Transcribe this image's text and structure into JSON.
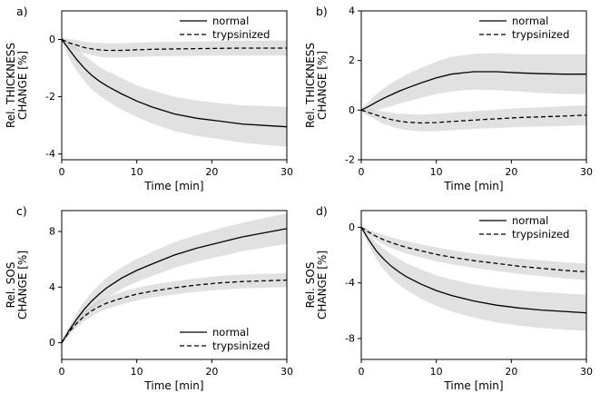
{
  "figure": {
    "background": "#ffffff",
    "line_color": "#000000",
    "band_color": "#c9c9c9"
  },
  "chart_data": [
    {
      "panel": "a)",
      "type": "line",
      "xlabel": "Time [min]",
      "ylabel_lines": [
        "Rel. THICKNESS",
        "CHANGE [%]"
      ],
      "xlim": [
        0,
        30
      ],
      "ylim": [
        -4.2,
        1.0
      ],
      "xticks": [
        0,
        10,
        20,
        30
      ],
      "yticks": [
        -4,
        -2,
        0
      ],
      "legend_position": "top-right",
      "x": [
        0,
        1,
        2,
        3,
        4,
        5,
        6,
        8,
        10,
        12,
        15,
        18,
        21,
        24,
        27,
        30
      ],
      "series": [
        {
          "name": "normal",
          "line_style": "solid",
          "y": [
            0,
            -0.35,
            -0.7,
            -1.0,
            -1.25,
            -1.45,
            -1.62,
            -1.9,
            -2.15,
            -2.35,
            -2.6,
            -2.75,
            -2.85,
            -2.95,
            -3.0,
            -3.05
          ],
          "band": [
            0.05,
            0.3,
            0.4,
            0.45,
            0.5,
            0.5,
            0.52,
            0.55,
            0.55,
            0.58,
            0.6,
            0.62,
            0.63,
            0.65,
            0.68,
            0.7
          ]
        },
        {
          "name": "trypsinized",
          "line_style": "dashed",
          "y": [
            0,
            -0.12,
            -0.2,
            -0.28,
            -0.33,
            -0.36,
            -0.38,
            -0.38,
            -0.36,
            -0.34,
            -0.33,
            -0.32,
            -0.31,
            -0.3,
            -0.3,
            -0.3
          ],
          "band": [
            0.05,
            0.14,
            0.18,
            0.2,
            0.22,
            0.24,
            0.25,
            0.25,
            0.25,
            0.25,
            0.25,
            0.25,
            0.25,
            0.26,
            0.26,
            0.27
          ]
        }
      ]
    },
    {
      "panel": "b)",
      "type": "line",
      "xlabel": "Time [min]",
      "ylabel_lines": [
        "Rel. THICKNESS",
        "CHANGE [%]"
      ],
      "xlim": [
        0,
        30
      ],
      "ylim": [
        -2.0,
        4.0
      ],
      "xticks": [
        0,
        10,
        20,
        30
      ],
      "yticks": [
        -2,
        0,
        2,
        4
      ],
      "legend_position": "top-right",
      "x": [
        0,
        1,
        2,
        3,
        4,
        5,
        6,
        8,
        10,
        12,
        15,
        18,
        21,
        24,
        27,
        30
      ],
      "series": [
        {
          "name": "normal",
          "line_style": "solid",
          "y": [
            0,
            0.15,
            0.32,
            0.48,
            0.62,
            0.76,
            0.88,
            1.1,
            1.3,
            1.45,
            1.55,
            1.55,
            1.5,
            1.47,
            1.45,
            1.45
          ],
          "band": [
            0.05,
            0.2,
            0.32,
            0.4,
            0.46,
            0.5,
            0.55,
            0.6,
            0.65,
            0.7,
            0.72,
            0.75,
            0.75,
            0.78,
            0.8,
            0.8
          ]
        },
        {
          "name": "trypsinized",
          "line_style": "dashed",
          "y": [
            0,
            -0.1,
            -0.2,
            -0.3,
            -0.38,
            -0.44,
            -0.48,
            -0.52,
            -0.5,
            -0.46,
            -0.4,
            -0.35,
            -0.3,
            -0.27,
            -0.24,
            -0.2
          ],
          "band": [
            0.05,
            0.14,
            0.2,
            0.25,
            0.28,
            0.3,
            0.32,
            0.34,
            0.35,
            0.35,
            0.36,
            0.37,
            0.38,
            0.39,
            0.4,
            0.4
          ]
        }
      ]
    },
    {
      "panel": "c)",
      "type": "line",
      "xlabel": "Time [min]",
      "ylabel_lines": [
        "Rel. SOS",
        "CHANGE [%]"
      ],
      "xlim": [
        0,
        30
      ],
      "ylim": [
        -1.2,
        9.5
      ],
      "xticks": [
        0,
        10,
        20,
        30
      ],
      "yticks": [
        0,
        4,
        8
      ],
      "legend_position": "bottom-right",
      "x": [
        0,
        1,
        2,
        3,
        4,
        5,
        6,
        8,
        10,
        12,
        15,
        18,
        21,
        24,
        27,
        30
      ],
      "series": [
        {
          "name": "normal",
          "line_style": "solid",
          "y": [
            0,
            0.9,
            1.7,
            2.4,
            3.0,
            3.5,
            3.95,
            4.65,
            5.2,
            5.65,
            6.3,
            6.8,
            7.2,
            7.6,
            7.9,
            8.2
          ],
          "band": [
            0.1,
            0.3,
            0.45,
            0.55,
            0.62,
            0.68,
            0.72,
            0.78,
            0.82,
            0.86,
            0.92,
            0.96,
            1.0,
            1.02,
            1.06,
            1.1
          ]
        },
        {
          "name": "trypsinized",
          "line_style": "dashed",
          "y": [
            0,
            0.8,
            1.4,
            1.9,
            2.3,
            2.6,
            2.85,
            3.2,
            3.5,
            3.7,
            3.95,
            4.15,
            4.3,
            4.4,
            4.45,
            4.5
          ],
          "band": [
            0.1,
            0.25,
            0.3,
            0.35,
            0.38,
            0.4,
            0.42,
            0.44,
            0.45,
            0.46,
            0.48,
            0.48,
            0.5,
            0.5,
            0.5,
            0.5
          ]
        }
      ]
    },
    {
      "panel": "d)",
      "type": "line",
      "xlabel": "Time [min]",
      "ylabel_lines": [
        "Rel. SOS",
        "CHANGE [%]"
      ],
      "xlim": [
        0,
        30
      ],
      "ylim": [
        -9.5,
        1.2
      ],
      "xticks": [
        0,
        10,
        20,
        30
      ],
      "yticks": [
        -8,
        -4,
        0
      ],
      "legend_position": "top-right",
      "x": [
        0,
        1,
        2,
        3,
        4,
        5,
        6,
        8,
        10,
        12,
        15,
        18,
        21,
        24,
        27,
        30
      ],
      "series": [
        {
          "name": "normal",
          "line_style": "solid",
          "y": [
            0,
            -0.9,
            -1.7,
            -2.3,
            -2.8,
            -3.2,
            -3.55,
            -4.1,
            -4.55,
            -4.9,
            -5.3,
            -5.6,
            -5.8,
            -5.95,
            -6.05,
            -6.15
          ],
          "band": [
            0.1,
            0.4,
            0.6,
            0.75,
            0.85,
            0.92,
            0.98,
            1.05,
            1.1,
            1.15,
            1.2,
            1.24,
            1.27,
            1.3,
            1.3,
            1.3
          ]
        },
        {
          "name": "trypsinized",
          "line_style": "dashed",
          "y": [
            0,
            -0.35,
            -0.65,
            -0.9,
            -1.1,
            -1.28,
            -1.44,
            -1.7,
            -1.95,
            -2.15,
            -2.4,
            -2.6,
            -2.8,
            -2.95,
            -3.1,
            -3.2
          ],
          "band": [
            0.05,
            0.2,
            0.28,
            0.34,
            0.38,
            0.42,
            0.44,
            0.48,
            0.5,
            0.5,
            0.52,
            0.54,
            0.55,
            0.57,
            0.58,
            0.6
          ]
        }
      ]
    }
  ]
}
